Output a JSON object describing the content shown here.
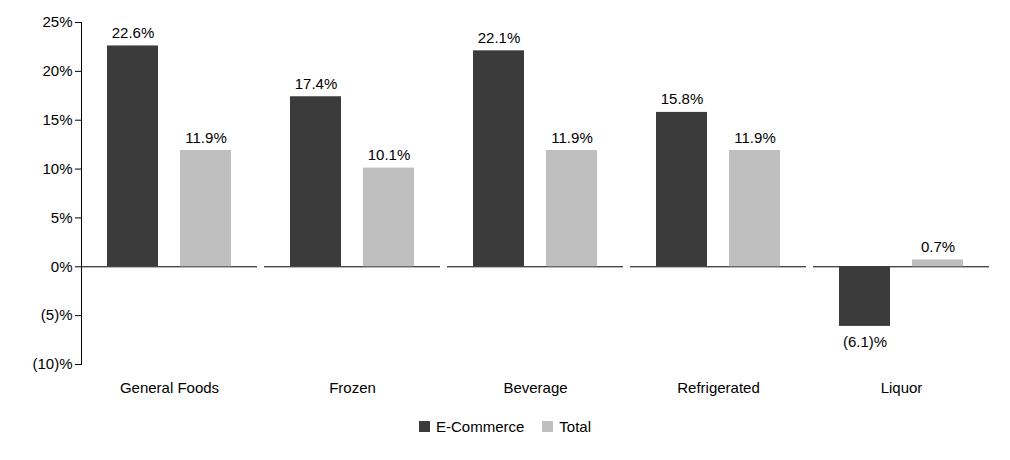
{
  "chart_data": {
    "type": "bar",
    "categories": [
      "General Foods",
      "Frozen",
      "Beverage",
      "Refrigerated",
      "Liquor"
    ],
    "series": [
      {
        "name": "E-Commerce",
        "color": "#3b3b3b",
        "values": [
          22.6,
          17.4,
          22.1,
          15.8,
          -6.1
        ],
        "value_labels": [
          "22.6%",
          "17.4%",
          "22.1%",
          "15.8%",
          "(6.1)%"
        ]
      },
      {
        "name": "Total",
        "color": "#bfbfbf",
        "values": [
          11.9,
          10.1,
          11.9,
          11.9,
          0.7
        ],
        "value_labels": [
          "11.9%",
          "10.1%",
          "11.9%",
          "11.9%",
          "0.7%"
        ]
      }
    ],
    "ylim": [
      -10,
      25
    ],
    "yticks": [
      {
        "value": -10,
        "label": "(10)%"
      },
      {
        "value": -5,
        "label": "(5)%"
      },
      {
        "value": 0,
        "label": "0%"
      },
      {
        "value": 5,
        "label": "5%"
      },
      {
        "value": 10,
        "label": "10%"
      },
      {
        "value": 15,
        "label": "15%"
      },
      {
        "value": 20,
        "label": "20%"
      },
      {
        "value": 25,
        "label": "25%"
      }
    ],
    "grid": false,
    "data_labels": true,
    "legend": "bottom"
  }
}
